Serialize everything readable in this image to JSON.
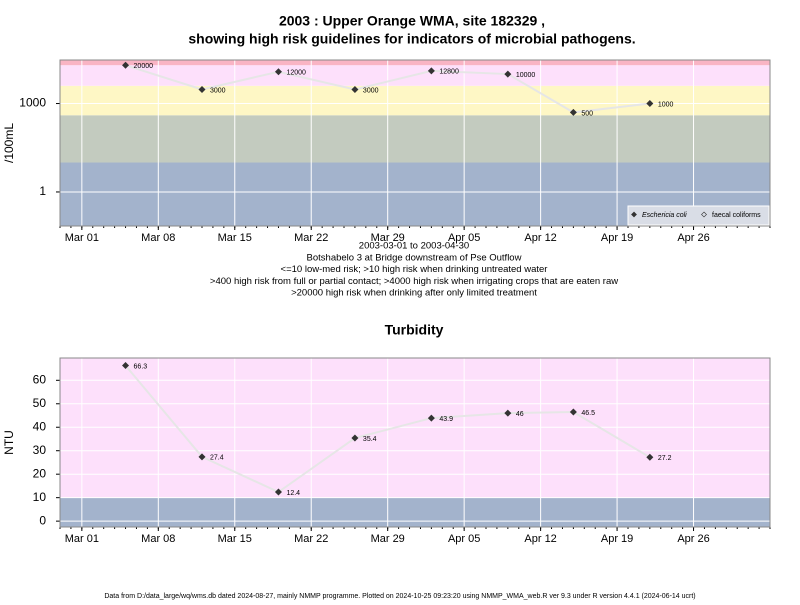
{
  "chart_data": [
    {
      "type": "line",
      "title": "2003 : Upper Orange WMA, site 182329 ,",
      "subtitle": "showing high risk guidelines for indicators of microbial pathogens.",
      "ylabel": "/100mL",
      "log_scale": true,
      "x": [
        "2003-03-05",
        "2003-03-12",
        "2003-03-19",
        "2003-03-26",
        "2003-04-02",
        "2003-04-09",
        "2003-04-15",
        "2003-04-22"
      ],
      "series": [
        {
          "name": "Eschericia coli",
          "color": "#333333",
          "values": [
            20000,
            3000,
            12000,
            3000,
            12800,
            10000,
            500,
            1000
          ]
        }
      ],
      "legend": [
        "Eschericia coli",
        "faecal coliforms"
      ],
      "xlim": [
        "2003-02-27",
        "2003-05-03"
      ],
      "xticks": [
        {
          "value": "2003-03-01",
          "label": "Mar 01"
        },
        {
          "value": "2003-03-08",
          "label": "Mar 08"
        },
        {
          "value": "2003-03-15",
          "label": "Mar 15"
        },
        {
          "value": "2003-03-22",
          "label": "Mar 22"
        },
        {
          "value": "2003-03-29",
          "label": "Mar 29"
        },
        {
          "value": "2003-04-05",
          "label": "Apr 05"
        },
        {
          "value": "2003-04-12",
          "label": "Apr 12"
        },
        {
          "value": "2003-04-19",
          "label": "Apr 19"
        },
        {
          "value": "2003-04-26",
          "label": "Apr 26"
        }
      ],
      "ylim": [
        0.07,
        30000
      ],
      "yticks": [
        1,
        1000
      ],
      "bands": [
        {
          "from": 0.07,
          "to": 10,
          "color": "#a3b3cc"
        },
        {
          "from": 10,
          "to": 400,
          "color": "#c3cbbf"
        },
        {
          "from": 400,
          "to": 4000,
          "color": "#fef7c5"
        },
        {
          "from": 4000,
          "to": 20000,
          "color": "#fde0fb"
        },
        {
          "from": 20000,
          "to": 30000,
          "color": "#f9b4c4"
        }
      ],
      "notes": [
        "2003-03-01 to 2003-04-30",
        "Botshabelo 3 at Bridge downstream of Pse Outflow",
        "<=10 low-med risk; >10 high risk when drinking untreated water",
        ">400 high risk from full or partial contact; >4000 high risk when irrigating crops that are eaten raw",
        ">20000 high risk when drinking after only limited treatment"
      ]
    },
    {
      "type": "line",
      "title": "Turbidity",
      "ylabel": "NTU",
      "log_scale": false,
      "x": [
        "2003-03-05",
        "2003-03-12",
        "2003-03-19",
        "2003-03-26",
        "2003-04-02",
        "2003-04-09",
        "2003-04-15",
        "2003-04-22"
      ],
      "series": [
        {
          "name": "Turbidity",
          "color": "#333333",
          "values": [
            66.3,
            27.4,
            12.4,
            35.4,
            43.9,
            46,
            46.5,
            27.2
          ]
        }
      ],
      "xlim": [
        "2003-02-27",
        "2003-05-03"
      ],
      "xticks": [
        {
          "value": "2003-03-01",
          "label": "Mar 01"
        },
        {
          "value": "2003-03-08",
          "label": "Mar 08"
        },
        {
          "value": "2003-03-15",
          "label": "Mar 15"
        },
        {
          "value": "2003-03-22",
          "label": "Mar 22"
        },
        {
          "value": "2003-03-29",
          "label": "Mar 29"
        },
        {
          "value": "2003-04-05",
          "label": "Apr 05"
        },
        {
          "value": "2003-04-12",
          "label": "Apr 12"
        },
        {
          "value": "2003-04-19",
          "label": "Apr 19"
        },
        {
          "value": "2003-04-26",
          "label": "Apr 26"
        }
      ],
      "ylim": [
        -2.5,
        69.5
      ],
      "yticks": [
        0,
        10,
        20,
        30,
        40,
        50,
        60
      ],
      "bands": [
        {
          "from": -2.5,
          "to": 10,
          "color": "#a3b3cc"
        },
        {
          "from": 10,
          "to": 69.5,
          "color": "#fde0fb"
        }
      ]
    }
  ],
  "footer": "Data from D:/data_large/wq/wms.db dated 2024-08-27, mainly NMMP programme. Plotted on 2024-10-25 09:23:20 using NMMP_WMA_web.R ver 9.3 under R version 4.4.1 (2024-06-14 ucrt)"
}
